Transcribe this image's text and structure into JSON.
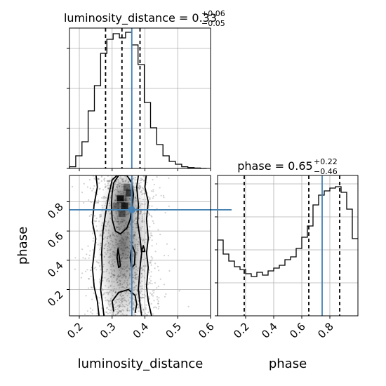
{
  "chart_data": [
    {
      "type": "histogram",
      "panel": "top-left",
      "title_prefix": "luminosity_distance = 0.33",
      "title_sup": "+0.06",
      "title_sub": "−0.05",
      "xlim": [
        0.17,
        0.6
      ],
      "ylim": [
        0,
        1.0
      ],
      "bin_edges": [
        0.17,
        0.189,
        0.208,
        0.227,
        0.246,
        0.265,
        0.284,
        0.303,
        0.322,
        0.341,
        0.36,
        0.379,
        0.398,
        0.417,
        0.436,
        0.455,
        0.474,
        0.493,
        0.512,
        0.531,
        0.55,
        0.569,
        0.588
      ],
      "values": [
        0.012,
        0.09,
        0.19,
        0.41,
        0.59,
        0.82,
        0.92,
        0.96,
        0.93,
        0.97,
        0.88,
        0.74,
        0.47,
        0.29,
        0.17,
        0.09,
        0.05,
        0.03,
        0.012,
        0.006,
        0.003,
        0.0
      ],
      "quantile_lines": [
        0.28,
        0.33,
        0.385
      ],
      "truth": 0.36,
      "grid": true
    },
    {
      "type": "histogram",
      "panel": "bottom-right",
      "title_prefix": "phase = 0.65",
      "title_sup": "+0.22",
      "title_sub": "−0.46",
      "xlim": [
        0.0,
        1.0
      ],
      "ylim": [
        0,
        1.0
      ],
      "xticks": [
        "0.2",
        "0.4",
        "0.6",
        "0.8"
      ],
      "xlabel": "phase",
      "bin_edges": [
        0.0,
        0.04,
        0.08,
        0.12,
        0.16,
        0.2,
        0.24,
        0.28,
        0.32,
        0.36,
        0.4,
        0.44,
        0.48,
        0.52,
        0.56,
        0.6,
        0.64,
        0.68,
        0.72,
        0.76,
        0.8,
        0.84,
        0.88,
        0.92,
        0.96,
        1.0
      ],
      "values": [
        0.54,
        0.44,
        0.39,
        0.35,
        0.33,
        0.3,
        0.28,
        0.31,
        0.29,
        0.32,
        0.34,
        0.36,
        0.4,
        0.42,
        0.48,
        0.56,
        0.64,
        0.79,
        0.86,
        0.89,
        0.91,
        0.92,
        0.88,
        0.76,
        0.55
      ],
      "quantile_lines": [
        0.19,
        0.65,
        0.87
      ],
      "truth": 0.745,
      "grid": true
    },
    {
      "type": "contour2d",
      "panel": "bottom-left",
      "xlim": [
        0.17,
        0.6
      ],
      "ylim": [
        0.02,
        0.98
      ],
      "xticks": [
        "0.2",
        "0.3",
        "0.4",
        "0.5",
        "0.6"
      ],
      "yticks": [
        "0.2",
        "0.4",
        "0.6",
        "0.8"
      ],
      "xlabel": "luminosity_distance",
      "ylabel": "phase",
      "truth": [
        0.36,
        0.745
      ],
      "density_peak": [
        0.335,
        0.8
      ],
      "grid": true
    }
  ]
}
